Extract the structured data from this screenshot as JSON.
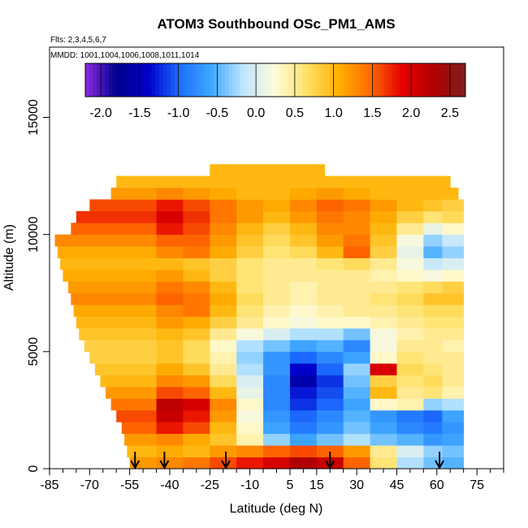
{
  "chart_data": {
    "type": "heatmap",
    "title": "ATOM3 Southbound OSc_PM1_AMS",
    "subtitle_flights": "Flts: 2,3,4,5,6,7",
    "subtitle_dates": "MMDD: 1001,1004,1006,1008,1011,1014",
    "xlabel": "Latitude (deg N)",
    "ylabel": "Altitude (m)",
    "xlim": [
      -85,
      85
    ],
    "ylim": [
      0,
      18000
    ],
    "x_ticks": [
      -85,
      -70,
      -55,
      -40,
      -25,
      -10,
      5,
      15,
      30,
      45,
      60,
      75
    ],
    "x_tick_labels": [
      "-85",
      "-70",
      "-55",
      "-40",
      "-25",
      "-10",
      "5",
      "15",
      "30",
      "45",
      "60",
      "75"
    ],
    "y_ticks": [
      0,
      5000,
      10000,
      15000
    ],
    "y_tick_labels": [
      "0",
      "5000",
      "10000",
      "15000"
    ],
    "colorbar": {
      "range": [
        -2.2,
        2.7
      ],
      "tick_values": [
        -2.0,
        -1.5,
        -1.0,
        -0.5,
        0.0,
        0.5,
        1.0,
        1.5,
        2.0,
        2.5
      ],
      "tick_labels": [
        "-2.0",
        "-1.5",
        "-1.0",
        "-0.5",
        "0.0",
        "0.5",
        "1.0",
        "1.5",
        "2.0",
        "2.5"
      ],
      "colors": [
        "#8a2be2",
        "#00008b",
        "#0000cd",
        "#1e6fff",
        "#3fa9ff",
        "#bfe6ff",
        "#fffbd8",
        "#ffe066",
        "#ffb000",
        "#ff6a00",
        "#e60000",
        "#b00000",
        "#7f1d1d"
      ]
    },
    "profile_markers_lat": [
      -53,
      -42,
      -19,
      20,
      61
    ],
    "altitude_bins": [
      0,
      500,
      1000,
      1500,
      2000,
      2500,
      3000,
      3500,
      4000,
      4500,
      5000,
      5500,
      6000,
      6500,
      7000,
      7500,
      8000,
      8500,
      9000,
      9500,
      10000,
      10500,
      11000,
      11500,
      12000,
      12500
    ],
    "latitude_edges": [
      -55,
      -45,
      -35,
      -25,
      -15,
      -5,
      5,
      15,
      25,
      35,
      45,
      55,
      62,
      70
    ],
    "latitude_extent": [
      [
        -55,
        70
      ],
      [
        -56,
        70
      ],
      [
        -57,
        70
      ],
      [
        -58,
        70
      ],
      [
        -60,
        70
      ],
      [
        -62,
        70
      ],
      [
        -64,
        70
      ],
      [
        -66,
        70
      ],
      [
        -68,
        70
      ],
      [
        -70,
        70
      ],
      [
        -72,
        70
      ],
      [
        -74,
        70
      ],
      [
        -75,
        70
      ],
      [
        -76,
        70
      ],
      [
        -77,
        70
      ],
      [
        -78,
        70
      ],
      [
        -80,
        70
      ],
      [
        -81,
        70
      ],
      [
        -82,
        70
      ],
      [
        -83,
        70
      ],
      [
        -77,
        70
      ],
      [
        -75,
        70
      ],
      [
        -70,
        70
      ],
      [
        -62,
        68
      ],
      [
        -60,
        65
      ],
      [
        -25,
        18
      ]
    ],
    "values": [
      [
        1.2,
        1.3,
        1.4,
        1.6,
        1.8,
        2.0,
        2.3,
        2.1,
        1.5,
        0.6,
        -0.2,
        -0.4,
        -0.5
      ],
      [
        1.0,
        1.1,
        1.0,
        1.2,
        1.3,
        1.5,
        1.6,
        1.5,
        1.2,
        0.5,
        0.0,
        -0.3,
        -0.4
      ],
      [
        1.2,
        1.3,
        1.1,
        0.9,
        0.4,
        -0.3,
        -0.6,
        -0.4,
        -0.2,
        -0.4,
        -0.5,
        -0.7,
        -0.6
      ],
      [
        1.5,
        1.8,
        1.6,
        1.0,
        0.3,
        -0.6,
        -0.9,
        -0.7,
        -0.4,
        -0.6,
        -0.8,
        -0.9,
        -0.7
      ],
      [
        1.6,
        2.1,
        1.8,
        1.2,
        0.2,
        -0.7,
        -1.0,
        -0.8,
        -0.5,
        -0.7,
        -0.9,
        -1.0,
        -0.6
      ],
      [
        1.4,
        2.2,
        2.0,
        1.3,
        0.3,
        -0.8,
        -1.2,
        -1.0,
        -0.6,
        0.3,
        0.4,
        -0.3,
        -0.2
      ],
      [
        1.2,
        1.6,
        1.5,
        1.0,
        0.1,
        -0.8,
        -1.3,
        -1.1,
        -0.5,
        1.0,
        0.5,
        0.6,
        0.4
      ],
      [
        1.0,
        1.3,
        1.2,
        0.7,
        0.0,
        -0.8,
        -1.6,
        -1.2,
        -0.4,
        0.8,
        0.6,
        0.7,
        0.5
      ],
      [
        0.9,
        1.1,
        0.9,
        0.5,
        -0.2,
        -0.7,
        -1.4,
        -1.0,
        -0.3,
        2.0,
        0.7,
        0.6,
        0.5
      ],
      [
        0.8,
        0.9,
        0.7,
        0.4,
        -0.3,
        -0.7,
        -1.0,
        -0.8,
        -0.6,
        0.3,
        0.6,
        0.5,
        0.5
      ],
      [
        0.8,
        0.9,
        0.7,
        0.3,
        -0.2,
        -0.4,
        -0.6,
        -0.5,
        -0.8,
        0.2,
        0.5,
        0.5,
        0.4
      ],
      [
        0.9,
        1.0,
        0.9,
        0.5,
        0.2,
        0.0,
        -0.2,
        -0.2,
        -0.4,
        0.2,
        0.4,
        0.5,
        0.5
      ],
      [
        1.0,
        1.2,
        1.1,
        0.8,
        0.5,
        0.3,
        0.2,
        0.3,
        0.3,
        0.4,
        0.5,
        0.6,
        0.6
      ],
      [
        1.1,
        1.3,
        1.4,
        1.0,
        0.6,
        0.4,
        0.3,
        0.4,
        0.5,
        0.5,
        0.6,
        0.7,
        0.7
      ],
      [
        1.3,
        1.5,
        1.4,
        1.1,
        0.7,
        0.5,
        0.4,
        0.5,
        0.5,
        0.6,
        0.7,
        0.9,
        0.9
      ],
      [
        1.2,
        1.4,
        1.3,
        1.0,
        0.6,
        0.5,
        0.4,
        0.5,
        0.5,
        0.5,
        0.6,
        0.7,
        0.8
      ],
      [
        1.1,
        1.2,
        1.0,
        0.8,
        0.6,
        0.5,
        0.5,
        0.5,
        0.5,
        0.4,
        0.3,
        0.2,
        0.3
      ],
      [
        1.0,
        1.0,
        0.9,
        0.8,
        0.6,
        0.5,
        0.5,
        0.6,
        0.7,
        0.5,
        0.2,
        -0.1,
        0.0
      ],
      [
        1.1,
        1.3,
        1.4,
        1.1,
        0.8,
        0.6,
        0.7,
        1.0,
        1.5,
        0.8,
        0.1,
        -0.5,
        -0.3
      ],
      [
        1.3,
        1.5,
        1.5,
        1.2,
        0.9,
        0.7,
        0.9,
        1.2,
        1.4,
        0.9,
        0.2,
        -0.3,
        -0.1
      ],
      [
        1.5,
        1.8,
        1.6,
        1.3,
        1.0,
        0.8,
        1.0,
        1.3,
        1.3,
        1.0,
        0.5,
        0.1,
        0.3
      ],
      [
        1.7,
        2.0,
        1.7,
        1.4,
        1.2,
        1.0,
        1.2,
        1.4,
        1.3,
        1.1,
        0.8,
        0.6,
        0.7
      ],
      [
        1.6,
        1.8,
        1.6,
        1.4,
        1.2,
        1.1,
        1.3,
        1.5,
        1.4,
        1.2,
        1.0,
        0.9,
        0.8
      ],
      [
        1.2,
        1.3,
        1.2,
        1.1,
        1.0,
        1.0,
        1.1,
        1.2,
        1.1,
        1.0,
        1.0,
        1.0,
        1.0
      ],
      [
        1.0,
        1.0,
        1.0,
        1.0,
        1.0,
        1.0,
        1.0,
        1.0,
        1.0,
        1.0,
        1.0,
        1.0,
        1.0
      ],
      [
        1.0,
        1.0,
        1.0,
        1.0,
        1.0,
        1.0,
        1.0,
        1.0,
        1.0,
        1.0,
        1.0,
        1.0,
        1.0
      ]
    ]
  }
}
